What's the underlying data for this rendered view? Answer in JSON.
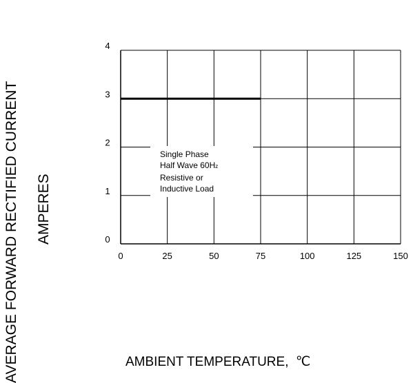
{
  "chart_data": {
    "type": "line",
    "title": "",
    "xlabel": "AMBIENT TEMPERATURE,",
    "xunit": "℃",
    "ylabel": [
      "AVERAGE FORWARD RECTIFIED CURRENT",
      "AMPERES"
    ],
    "x_ticks": [
      "0",
      "25",
      "50",
      "75",
      "100",
      "125",
      "150"
    ],
    "y_ticks": [
      "0",
      "1",
      "2",
      "3",
      "4"
    ],
    "xlim": [
      0,
      150
    ],
    "ylim": [
      0,
      4
    ],
    "grid": true,
    "series": [
      {
        "x": [
          0,
          75
        ],
        "y": [
          3,
          3
        ]
      }
    ],
    "annotation": {
      "lines": [
        "Single Phase",
        "Half Wave 60H",
        "Resistive or",
        "Inductive Load"
      ],
      "subscript": "z"
    }
  }
}
